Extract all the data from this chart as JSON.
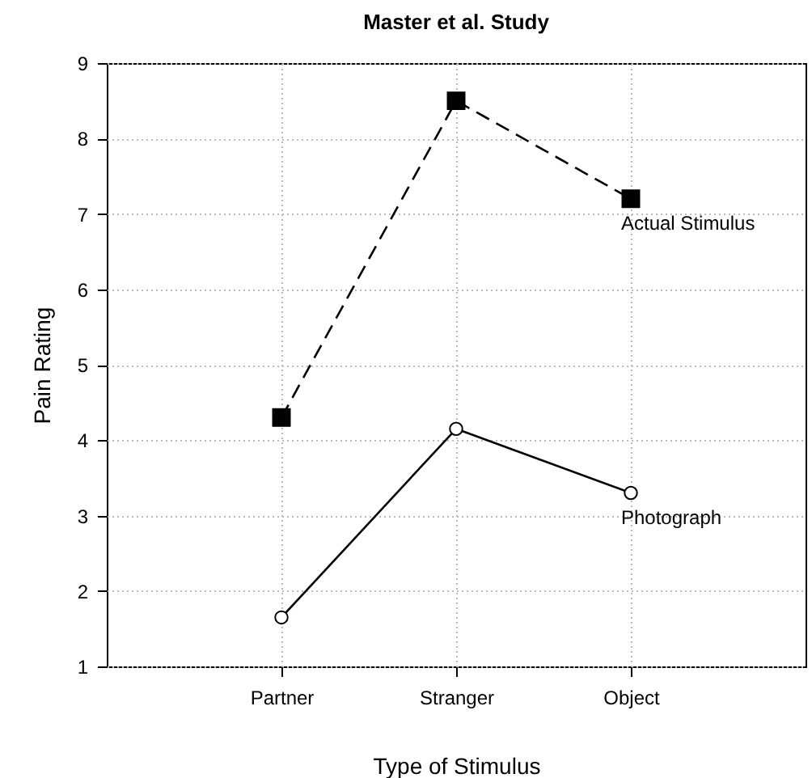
{
  "chart_data": {
    "type": "line",
    "title": "Master et al. Study",
    "xlabel": "Type of Stimulus",
    "ylabel": "Pain Rating",
    "categories": [
      "Partner",
      "Stranger",
      "Object"
    ],
    "series": [
      {
        "name": "Actual Stimulus",
        "color": "#000000",
        "values": [
          4.3,
          8.5,
          7.2
        ],
        "marker": "square",
        "line_style": "dashed"
      },
      {
        "name": "Photograph",
        "color": "#000000",
        "values": [
          1.65,
          4.15,
          3.3
        ],
        "marker": "circle",
        "line_style": "solid"
      }
    ],
    "ylim": [
      1,
      9
    ],
    "yticks": [
      1,
      2,
      3,
      4,
      5,
      6,
      7,
      8,
      9
    ],
    "grid": true
  }
}
